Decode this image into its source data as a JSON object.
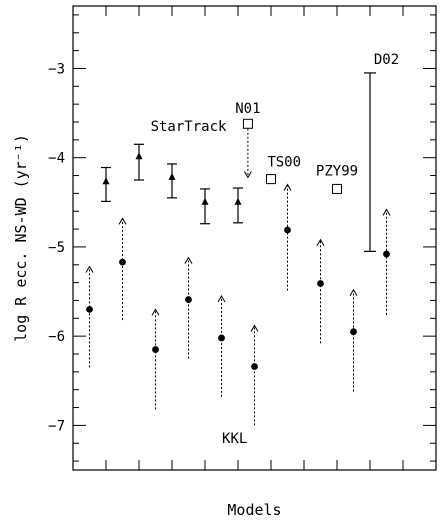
{
  "chart_data": {
    "type": "scatter",
    "title": "",
    "xlabel": "Models",
    "ylabel": "log R ecc. NS-WD (yr⁻¹)",
    "ylim": [
      -7.5,
      -2.3
    ],
    "yticks": [
      -3,
      -4,
      -5,
      -6,
      -7
    ],
    "ytick_labels": [
      "−3",
      "−4",
      "−5",
      "−6",
      "−7"
    ],
    "x_tick_count": 11,
    "grid": false,
    "legend": "none",
    "annotations": [
      {
        "text": "StarTrack",
        "x": 3.5,
        "y": -3.7
      },
      {
        "text": "N01",
        "x": 5.3,
        "y": -3.5
      },
      {
        "text": "TS00",
        "x": 6.4,
        "y": -4.1
      },
      {
        "text": "PZY99",
        "x": 8.0,
        "y": -4.2
      },
      {
        "text": "D02",
        "x": 9.5,
        "y": -2.95
      },
      {
        "text": "KKL",
        "x": 4.9,
        "y": -7.2
      }
    ],
    "series": [
      {
        "name": "StarTrack",
        "marker": "triangle",
        "points": [
          {
            "x": 1.0,
            "y": -4.27,
            "ylow": -4.49,
            "yhigh": -4.11
          },
          {
            "x": 2.0,
            "y": -3.99,
            "ylow": -4.25,
            "yhigh": -3.85
          },
          {
            "x": 3.0,
            "y": -4.22,
            "ylow": -4.45,
            "yhigh": -4.07
          },
          {
            "x": 4.0,
            "y": -4.5,
            "ylow": -4.74,
            "yhigh": -4.35
          },
          {
            "x": 5.0,
            "y": -4.5,
            "ylow": -4.73,
            "yhigh": -4.34
          }
        ]
      },
      {
        "name": "KKL",
        "marker": "circle",
        "points": [
          {
            "x": 0.5,
            "y": -5.7,
            "arrow_top": -5.22,
            "arrow_bottom": -6.35
          },
          {
            "x": 1.5,
            "y": -5.17,
            "arrow_top": -4.68,
            "arrow_bottom": -5.82
          },
          {
            "x": 2.5,
            "y": -6.15,
            "arrow_top": -5.7,
            "arrow_bottom": -6.82
          },
          {
            "x": 3.5,
            "y": -5.59,
            "arrow_top": -5.12,
            "arrow_bottom": -6.25
          },
          {
            "x": 4.5,
            "y": -6.02,
            "arrow_top": -5.55,
            "arrow_bottom": -6.68
          },
          {
            "x": 5.5,
            "y": -6.34,
            "arrow_top": -5.88,
            "arrow_bottom": -7.0
          },
          {
            "x": 6.5,
            "y": -4.81,
            "arrow_top": -4.3,
            "arrow_bottom": -5.49
          },
          {
            "x": 7.5,
            "y": -5.41,
            "arrow_top": -4.92,
            "arrow_bottom": -6.08
          },
          {
            "x": 8.5,
            "y": -5.95,
            "arrow_top": -5.48,
            "arrow_bottom": -6.62
          },
          {
            "x": 9.5,
            "y": -5.08,
            "arrow_top": -4.58,
            "arrow_bottom": -5.76
          }
        ]
      },
      {
        "name": "N01",
        "marker": "square",
        "points": [
          {
            "x": 5.3,
            "y": -3.62,
            "arrow_to": -4.22
          }
        ]
      },
      {
        "name": "TS00",
        "marker": "square",
        "points": [
          {
            "x": 6.0,
            "y": -4.24
          }
        ]
      },
      {
        "name": "PZY99",
        "marker": "square",
        "points": [
          {
            "x": 8.0,
            "y": -4.35
          }
        ]
      },
      {
        "name": "D02",
        "marker": "none",
        "points": [
          {
            "x": 9.0,
            "ylow": -5.05,
            "yhigh": -3.05
          }
        ]
      }
    ]
  }
}
